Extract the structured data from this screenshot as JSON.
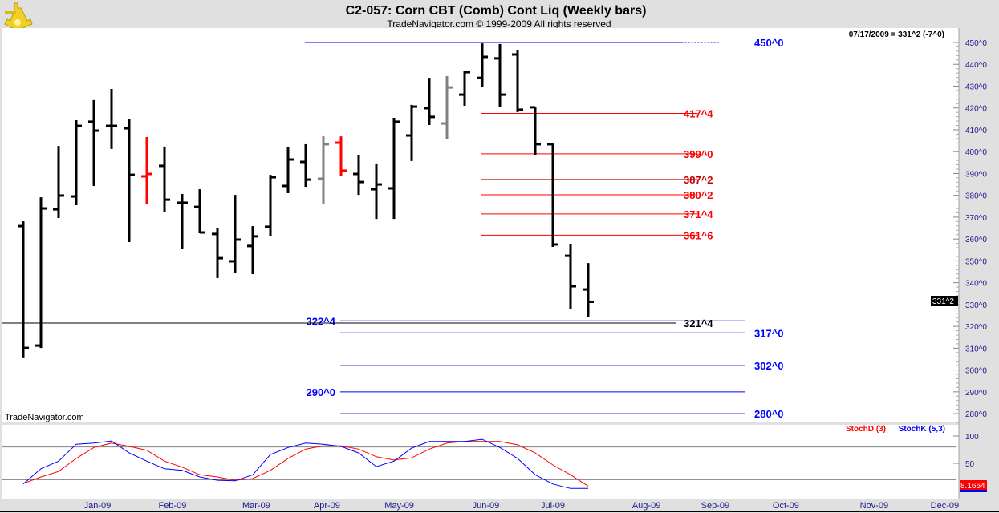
{
  "header": {
    "title": "C2-057:  Corn CBT (Comb) Cont Liq  (Weekly bars)",
    "copyright": "TradeNavigator.com © 1999-2009 All rights reserved",
    "last_quote": "07/17/2009 = 331^2 (-7^0)",
    "watermark": "TradeNavigator.com"
  },
  "colors": {
    "background": "#e0e0e0",
    "panel": "#ffffff",
    "axis_text": "#1a1a8c",
    "blue": "#0000ff",
    "red": "#ff0000",
    "stoch_d": "#ff0000",
    "stoch_k": "#0000ff"
  },
  "chart_data": [
    {
      "type": "ohlc",
      "title": "C2-057:  Corn CBT (Comb) Cont Liq  (Weekly bars)",
      "ylim": [
        275,
        455
      ],
      "y_ticks": [
        "280^0",
        "290^0",
        "300^0",
        "310^0",
        "320^0",
        "330^0",
        "340^0",
        "350^0",
        "360^0",
        "370^0",
        "380^0",
        "390^0",
        "400^0",
        "410^0",
        "420^0",
        "430^0",
        "440^0",
        "450^0"
      ],
      "y_tick_values": [
        280,
        290,
        300,
        310,
        320,
        330,
        340,
        350,
        360,
        370,
        380,
        390,
        400,
        410,
        420,
        430,
        440,
        450
      ],
      "months": [
        {
          "label": "Jan-09",
          "week": 4.2
        },
        {
          "label": "Feb-09",
          "week": 8.45
        },
        {
          "label": "Mar-09",
          "week": 13.2
        },
        {
          "label": "Apr-09",
          "week": 17.2
        },
        {
          "label": "May-09",
          "week": 21.3
        },
        {
          "label": "Jun-09",
          "week": 26.2
        },
        {
          "label": "Jul-09",
          "week": 30.0
        },
        {
          "label": "Aug-09",
          "week": 35.3
        },
        {
          "label": "Sep-09",
          "week": 39.2
        },
        {
          "label": "Oct-09",
          "week": 43.2
        },
        {
          "label": "Nov-09",
          "week": 48.2
        },
        {
          "label": "Dec-09",
          "week": 52.2
        }
      ],
      "bars": [
        {
          "o": 365.9,
          "h": 368.1,
          "l": 305.4,
          "c": 310.1,
          "color": "black"
        },
        {
          "o": 311.2,
          "h": 379.1,
          "l": 310.1,
          "c": 374.0,
          "color": "black"
        },
        {
          "o": 373.6,
          "h": 402.6,
          "l": 369.6,
          "c": 379.9,
          "color": "black"
        },
        {
          "o": 379.5,
          "h": 414.4,
          "l": 375.5,
          "c": 411.8,
          "color": "black"
        },
        {
          "o": 413.7,
          "h": 423.6,
          "l": 384.3,
          "c": 409.6,
          "color": "black"
        },
        {
          "o": 411.8,
          "h": 428.7,
          "l": 401.2,
          "c": 411.8,
          "color": "black"
        },
        {
          "o": 410.7,
          "h": 414.8,
          "l": 358.6,
          "c": 389.4,
          "color": "black"
        },
        {
          "o": 388.7,
          "h": 406.7,
          "l": 375.8,
          "c": 389.8,
          "color": "red"
        },
        {
          "o": 393.5,
          "h": 402.3,
          "l": 372.2,
          "c": 378.0,
          "color": "black"
        },
        {
          "o": 376.6,
          "h": 380.6,
          "l": 355.3,
          "c": 376.6,
          "color": "black"
        },
        {
          "o": 374.7,
          "h": 382.8,
          "l": 362.6,
          "c": 363.0,
          "color": "black"
        },
        {
          "o": 362.3,
          "h": 365.2,
          "l": 342.1,
          "c": 351.2,
          "color": "black"
        },
        {
          "o": 349.8,
          "h": 380.2,
          "l": 344.6,
          "c": 359.7,
          "color": "black"
        },
        {
          "o": 356.8,
          "h": 365.9,
          "l": 343.9,
          "c": 361.2,
          "color": "black"
        },
        {
          "o": 365.6,
          "h": 389.4,
          "l": 361.2,
          "c": 388.3,
          "color": "black"
        },
        {
          "o": 384.3,
          "h": 402.3,
          "l": 381.0,
          "c": 396.4,
          "color": "black"
        },
        {
          "o": 395.3,
          "h": 403.4,
          "l": 383.9,
          "c": 387.2,
          "color": "black"
        },
        {
          "o": 387.6,
          "h": 407.0,
          "l": 376.2,
          "c": 403.4,
          "color": "gray"
        },
        {
          "o": 404.1,
          "h": 407.0,
          "l": 388.7,
          "c": 391.3,
          "color": "red"
        },
        {
          "o": 389.8,
          "h": 398.6,
          "l": 380.2,
          "c": 386.1,
          "color": "black"
        },
        {
          "o": 382.8,
          "h": 394.6,
          "l": 369.2,
          "c": 385.0,
          "color": "black"
        },
        {
          "o": 383.2,
          "h": 415.5,
          "l": 369.2,
          "c": 413.7,
          "color": "black"
        },
        {
          "o": 407.4,
          "h": 421.4,
          "l": 395.7,
          "c": 420.6,
          "color": "black"
        },
        {
          "o": 419.9,
          "h": 433.8,
          "l": 412.2,
          "c": 415.9,
          "color": "black"
        },
        {
          "o": 412.9,
          "h": 434.6,
          "l": 405.6,
          "c": 429.4,
          "color": "gray"
        },
        {
          "o": 426.1,
          "h": 436.8,
          "l": 421.0,
          "c": 436.4,
          "color": "black"
        },
        {
          "o": 433.8,
          "h": 449.6,
          "l": 429.8,
          "c": 443.4,
          "color": "black"
        },
        {
          "o": 442.7,
          "h": 449.3,
          "l": 420.3,
          "c": 426.1,
          "color": "black"
        },
        {
          "o": 444.5,
          "h": 446.7,
          "l": 418.1,
          "c": 419.2,
          "color": "black"
        },
        {
          "o": 420.3,
          "h": 420.6,
          "l": 398.6,
          "c": 403.4,
          "color": "black"
        },
        {
          "o": 403.4,
          "h": 403.7,
          "l": 356.4,
          "c": 357.5,
          "color": "black"
        },
        {
          "o": 352.3,
          "h": 357.5,
          "l": 328.1,
          "c": 338.4,
          "color": "black"
        },
        {
          "o": 336.9,
          "h": 349.0,
          "l": 324.1,
          "c": 331.25,
          "color": "black"
        }
      ],
      "levels": [
        {
          "price": 450.0,
          "label": "450^0",
          "color": "#0000ff",
          "from_week": 15.95,
          "to_week": 37.3,
          "dotted_to_week": 39.4,
          "label_side": "right"
        },
        {
          "price": 417.5,
          "label": "417^4",
          "color": "#ff0000",
          "from_week": 25.95,
          "to_week": 38.2,
          "label_side": "end"
        },
        {
          "price": 399.0,
          "label": "399^0",
          "color": "#ff0000",
          "from_week": 25.95,
          "to_week": 38.2,
          "label_side": "end"
        },
        {
          "price": 387.25,
          "label": "387^2",
          "color": "#cc0000",
          "from_week": 25.95,
          "to_week": 38.2,
          "label_side": "end"
        },
        {
          "price": 380.25,
          "label": "380^2",
          "color": "#ff0000",
          "from_week": 25.95,
          "to_week": 38.2,
          "label_side": "end"
        },
        {
          "price": 371.5,
          "label": "371^4",
          "color": "#ff0000",
          "from_week": 25.95,
          "to_week": 38.2,
          "label_side": "end"
        },
        {
          "price": 361.75,
          "label": "361^6",
          "color": "#ff0000",
          "from_week": 25.95,
          "to_week": 38.2,
          "label_side": "end"
        },
        {
          "price": 322.5,
          "label": "322^4",
          "color": "#0000ff",
          "from_week": 17.95,
          "to_week": 40.9,
          "label_side": "left"
        },
        {
          "price": 321.5,
          "label": "321^4",
          "color": "#000000",
          "from_week": 0,
          "to_week": 37.0,
          "label_side": "end"
        },
        {
          "price": 317.0,
          "label": "317^0",
          "color": "#0000ff",
          "from_week": 17.95,
          "to_week": 40.9,
          "label_side": "right"
        },
        {
          "price": 302.0,
          "label": "302^0",
          "color": "#0000ff",
          "from_week": 17.95,
          "to_week": 40.9,
          "label_side": "right"
        },
        {
          "price": 290.0,
          "label": "290^0",
          "color": "#0000ff",
          "from_week": 17.95,
          "to_week": 40.9,
          "label_side": "left"
        },
        {
          "price": 280.0,
          "label": "280^0",
          "color": "#0000ff",
          "from_week": 17.95,
          "to_week": 40.9,
          "label_side": "right"
        }
      ],
      "last_price": 331.25,
      "last_price_label": "331^2"
    },
    {
      "type": "line",
      "title": "Stochastic",
      "ylim": [
        0,
        100
      ],
      "y_ticks": [
        "100",
        "50"
      ],
      "y_tick_values": [
        100,
        50
      ],
      "gridlines": [
        80,
        20
      ],
      "legend": [
        {
          "name": "StochD (3)",
          "color": "#ff0000"
        },
        {
          "name": "StochK (5,3)",
          "color": "#0000ff"
        }
      ],
      "legend_position": "top-right",
      "series": [
        {
          "name": "StochD (3)",
          "color": "#ff0000",
          "values": [
            13,
            25,
            35,
            59,
            79,
            87,
            81,
            74,
            54,
            43,
            29,
            25,
            19,
            22,
            37,
            59,
            76,
            82,
            82,
            76,
            62,
            56,
            60,
            76,
            87,
            90,
            90,
            90,
            84,
            69,
            47,
            29,
            8.1664
          ]
        },
        {
          "name": "StochK (5,3)",
          "color": "#0000ff",
          "values": [
            12,
            40,
            54,
            85,
            87,
            91,
            69,
            54,
            40,
            37,
            25,
            19,
            18,
            29,
            66,
            79,
            87,
            85,
            81,
            69,
            44,
            54,
            78,
            90,
            90,
            90,
            94,
            79,
            59,
            29,
            12,
            4,
            4
          ]
        }
      ],
      "last_value_label": "8.1664"
    }
  ]
}
